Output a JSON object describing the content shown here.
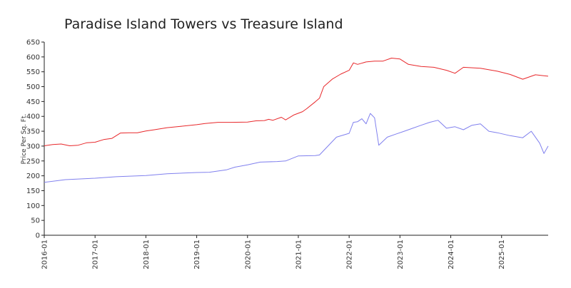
{
  "chart_data": {
    "type": "line",
    "title": "Paradise Island Towers vs Treasure Island",
    "xlabel": "",
    "ylabel": "Price Per Sq. Ft.",
    "ylim": [
      0,
      650
    ],
    "y_ticks": [
      0,
      50,
      100,
      150,
      200,
      250,
      300,
      350,
      400,
      450,
      500,
      550,
      600,
      650
    ],
    "x_ticks": [
      "2016-01",
      "2017-01",
      "2018-01",
      "2019-01",
      "2020-01",
      "2021-01",
      "2022-01",
      "2023-01",
      "2024-01",
      "2025-01"
    ],
    "x_range": [
      "2016-01",
      "2025-12"
    ],
    "grid": false,
    "legend": "none",
    "series": [
      {
        "color": "#e8282b",
        "x": [
          "2016-01",
          "2016-03",
          "2016-05",
          "2016-07",
          "2016-09",
          "2016-11",
          "2017-01",
          "2017-03",
          "2017-05",
          "2017-07",
          "2017-09",
          "2017-11",
          "2018-01",
          "2018-03",
          "2018-06",
          "2018-09",
          "2019-01",
          "2019-03",
          "2019-06",
          "2019-09",
          "2020-01",
          "2020-03",
          "2020-05",
          "2020-06",
          "2020-07",
          "2020-09",
          "2020-10",
          "2020-12",
          "2021-02",
          "2021-03",
          "2021-05",
          "2021-06",
          "2021-07",
          "2021-09",
          "2021-11",
          "2022-01",
          "2022-02",
          "2022-03",
          "2022-05",
          "2022-07",
          "2022-09",
          "2022-11",
          "2023-01",
          "2023-03",
          "2023-06",
          "2023-09",
          "2023-12",
          "2024-02",
          "2024-04",
          "2024-08",
          "2024-12",
          "2025-03",
          "2025-06",
          "2025-09",
          "2025-12"
        ],
        "values": [
          301,
          305,
          307,
          301,
          303,
          311,
          313,
          322,
          326,
          344,
          345,
          345,
          351,
          355,
          362,
          366,
          372,
          376,
          380,
          380,
          381,
          385,
          386,
          390,
          387,
          397,
          388,
          405,
          416,
          426,
          449,
          461,
          500,
          525,
          542,
          555,
          580,
          575,
          583,
          586,
          586,
          596,
          593,
          575,
          568,
          565,
          555,
          545,
          565,
          562,
          552,
          541,
          525,
          540,
          535
        ]
      },
      {
        "color": "#8080ee",
        "x": [
          "2016-01",
          "2016-06",
          "2017-01",
          "2017-06",
          "2018-01",
          "2018-06",
          "2019-01",
          "2019-04",
          "2019-08",
          "2019-10",
          "2020-01",
          "2020-04",
          "2020-08",
          "2020-10",
          "2021-01",
          "2021-05",
          "2021-06",
          "2021-08",
          "2021-10",
          "2022-01",
          "2022-02",
          "2022-03",
          "2022-04",
          "2022-05",
          "2022-06",
          "2022-07",
          "2022-08",
          "2022-10",
          "2022-12",
          "2023-02",
          "2023-04",
          "2023-06",
          "2023-08",
          "2023-10",
          "2023-12",
          "2024-01",
          "2024-02",
          "2024-04",
          "2024-06",
          "2024-08",
          "2024-10",
          "2024-12",
          "2025-03",
          "2025-06",
          "2025-08",
          "2025-10",
          "2025-11",
          "2025-12"
        ],
        "values": [
          178,
          187,
          192,
          197,
          201,
          207,
          211,
          212,
          220,
          229,
          237,
          246,
          248,
          250,
          267,
          268,
          270,
          300,
          330,
          343,
          380,
          382,
          392,
          375,
          410,
          395,
          303,
          330,
          340,
          350,
          360,
          370,
          380,
          387,
          360,
          363,
          365,
          355,
          370,
          375,
          350,
          345,
          335,
          328,
          350,
          310,
          275,
          300
        ]
      }
    ]
  }
}
